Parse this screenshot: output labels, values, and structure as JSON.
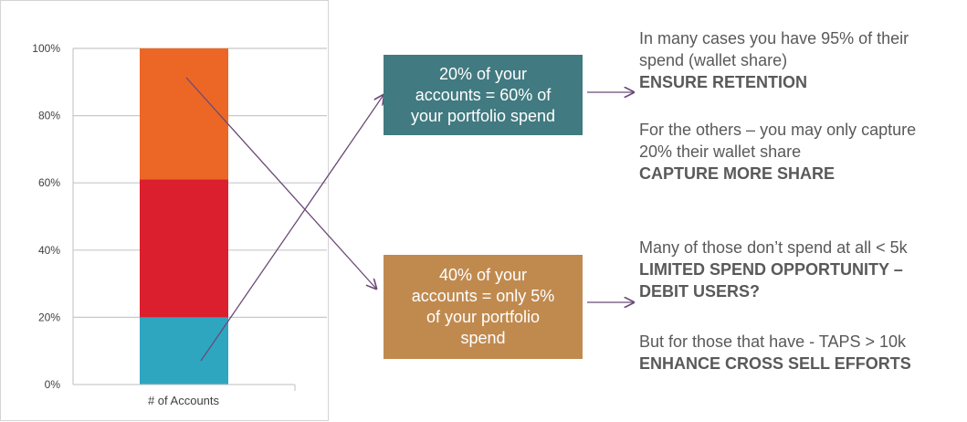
{
  "chart_data": {
    "type": "bar",
    "stacked": true,
    "categories": [
      "# of Accounts"
    ],
    "series": [
      {
        "values": [
          20
        ]
      },
      {
        "values": [
          41
        ]
      },
      {
        "values": [
          39
        ]
      }
    ],
    "y_ticks": [
      "0%",
      "20%",
      "40%",
      "60%",
      "80%",
      "100%"
    ],
    "ylim": [
      0,
      100
    ],
    "grid": true,
    "colors": [
      "#2ea6c0",
      "#dc1f2e",
      "#ec6725"
    ]
  },
  "callouts": {
    "top": {
      "lines": [
        "20% of your",
        "accounts = 60% of",
        "your portfolio spend"
      ],
      "color": "#417a80"
    },
    "bottom": {
      "lines": [
        "40% of your",
        "accounts =  only 5%",
        "of your portfolio",
        "spend"
      ],
      "color": "#c08a4f"
    }
  },
  "notes": {
    "top1": [
      "In many cases you have 95% of their",
      "spend (wallet share)"
    ],
    "top1_bold": "ENSURE RETENTION",
    "top2": [
      "For the others – you may only capture",
      "20% their wallet share"
    ],
    "top2_bold": "CAPTURE MORE SHARE",
    "bottom1": [
      "Many of those don’t spend at all < 5k"
    ],
    "bottom1_bold": [
      "LIMITED SPEND OPPORTUNITY –",
      "DEBIT USERS?"
    ],
    "bottom2": [
      "But for those that have - TAPS > 10k"
    ],
    "bottom2_bold": "ENHANCE CROSS SELL EFFORTS"
  },
  "arrow_color": "#6b4a78"
}
